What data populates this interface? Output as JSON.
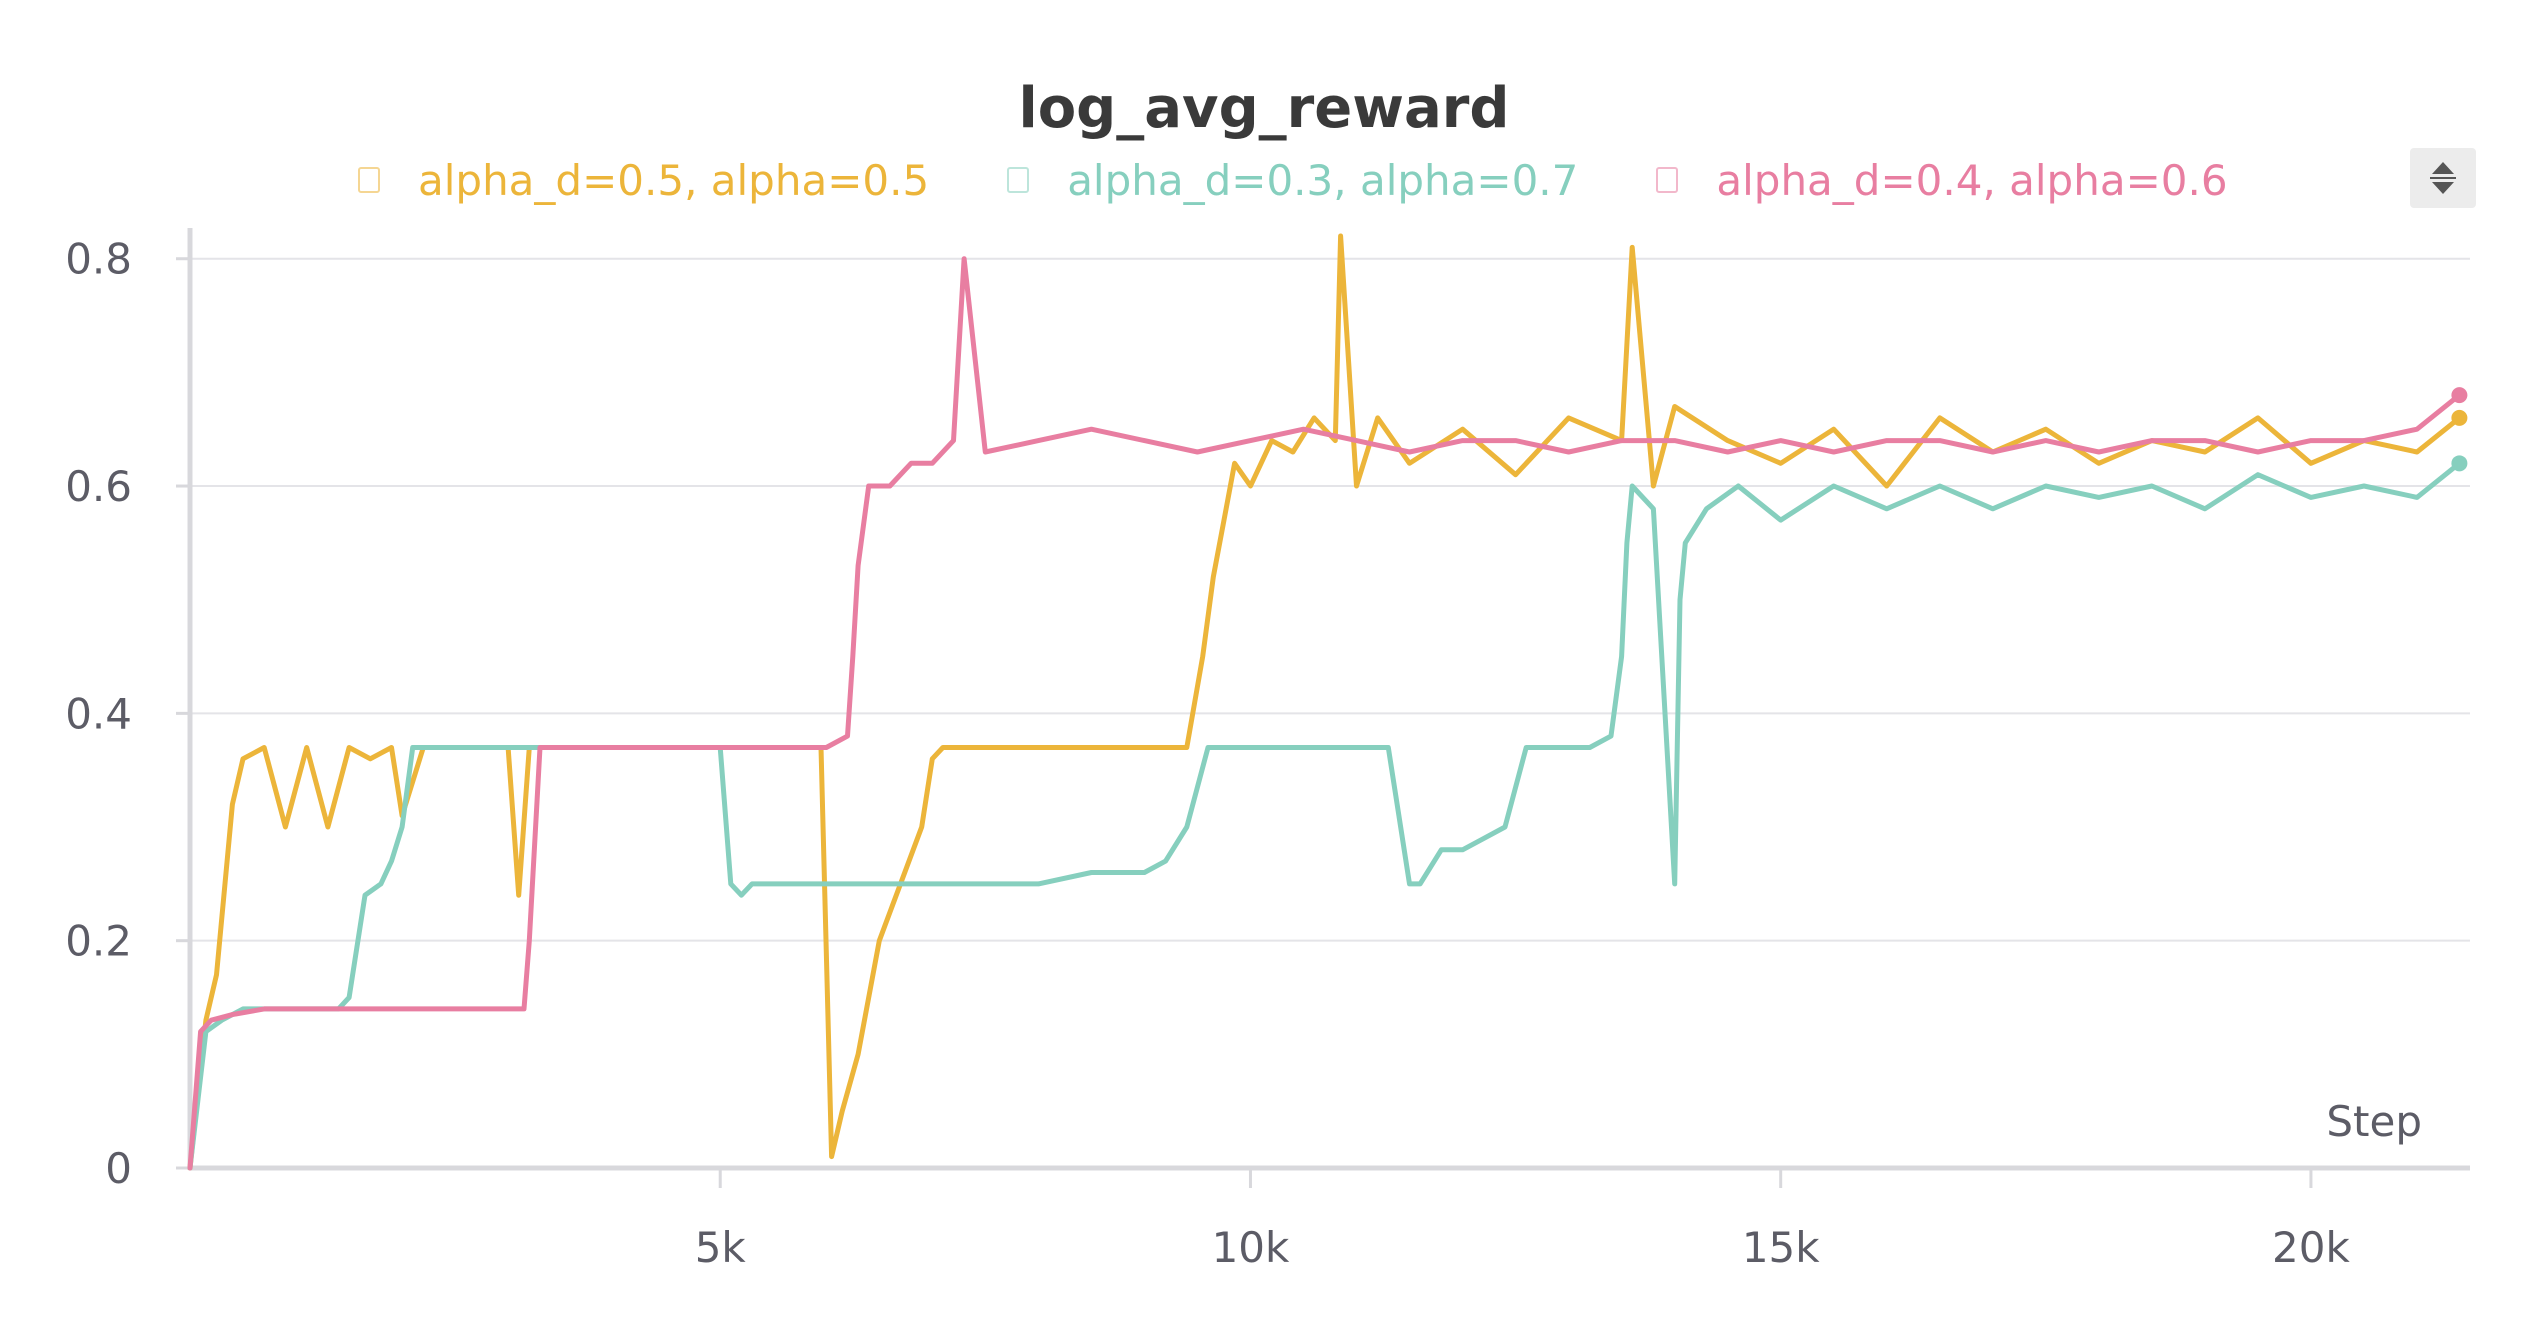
{
  "chart_data": {
    "type": "line",
    "title": "log_avg_reward",
    "xlabel": "Step",
    "ylabel": "",
    "xlim": [
      0,
      21500
    ],
    "ylim": [
      0,
      0.82
    ],
    "xticks": [
      5000,
      10000,
      15000,
      20000
    ],
    "xtick_labels": [
      "5k",
      "10k",
      "15k",
      "20k"
    ],
    "yticks": [
      0,
      0.2,
      0.4,
      0.6,
      0.8
    ],
    "ytick_labels": [
      "0",
      "0.2",
      "0.4",
      "0.6",
      "0.8"
    ],
    "grid": true,
    "legend_position": "top",
    "series": [
      {
        "name": "alpha_d=0.5, alpha=0.5",
        "color": "#ecb53a",
        "x": [
          0,
          150,
          250,
          400,
          500,
          700,
          900,
          1100,
          1300,
          1500,
          1700,
          1900,
          2000,
          2200,
          2500,
          2800,
          3000,
          3100,
          3200,
          3300,
          3500,
          3700,
          4000,
          4500,
          5000,
          5500,
          5800,
          5950,
          6050,
          6150,
          6300,
          6500,
          6700,
          6900,
          7000,
          7100,
          7500,
          8000,
          8500,
          9000,
          9400,
          9550,
          9650,
          9750,
          9850,
          10000,
          10200,
          10400,
          10600,
          10800,
          10850,
          11000,
          11200,
          11500,
          12000,
          12500,
          13000,
          13500,
          13600,
          13800,
          14000,
          14500,
          15000,
          15500,
          16000,
          16500,
          17000,
          17500,
          18000,
          18500,
          19000,
          19500,
          20000,
          20500,
          21000,
          21400
        ],
        "y": [
          0.0,
          0.13,
          0.17,
          0.32,
          0.36,
          0.37,
          0.3,
          0.37,
          0.3,
          0.37,
          0.36,
          0.37,
          0.31,
          0.37,
          0.37,
          0.37,
          0.37,
          0.24,
          0.37,
          0.37,
          0.37,
          0.37,
          0.37,
          0.37,
          0.37,
          0.37,
          0.37,
          0.37,
          0.01,
          0.05,
          0.1,
          0.2,
          0.25,
          0.3,
          0.36,
          0.37,
          0.37,
          0.37,
          0.37,
          0.37,
          0.37,
          0.45,
          0.52,
          0.57,
          0.62,
          0.6,
          0.64,
          0.63,
          0.66,
          0.64,
          0.82,
          0.6,
          0.66,
          0.62,
          0.65,
          0.61,
          0.66,
          0.64,
          0.81,
          0.6,
          0.67,
          0.64,
          0.62,
          0.65,
          0.6,
          0.66,
          0.63,
          0.65,
          0.62,
          0.64,
          0.63,
          0.66,
          0.62,
          0.64,
          0.63,
          0.66
        ]
      },
      {
        "name": "alpha_d=0.3, alpha=0.7",
        "color": "#86cfbe",
        "x": [
          0,
          150,
          300,
          500,
          800,
          1100,
          1400,
          1500,
          1650,
          1800,
          1900,
          2000,
          2100,
          2200,
          2400,
          2700,
          3000,
          3300,
          3600,
          4000,
          4300,
          4500,
          4800,
          5000,
          5100,
          5200,
          5300,
          5500,
          6000,
          6500,
          7000,
          7500,
          8000,
          8500,
          9000,
          9200,
          9400,
          9600,
          9800,
          10000,
          10500,
          11000,
          11300,
          11500,
          11600,
          11800,
          12000,
          12200,
          12400,
          12600,
          12900,
          13200,
          13400,
          13500,
          13550,
          13600,
          13800,
          14000,
          14050,
          14100,
          14300,
          14600,
          15000,
          15500,
          16000,
          16500,
          17000,
          17500,
          18000,
          18500,
          19000,
          19500,
          20000,
          20500,
          21000,
          21400
        ],
        "y": [
          0.0,
          0.12,
          0.13,
          0.14,
          0.14,
          0.14,
          0.14,
          0.15,
          0.24,
          0.25,
          0.27,
          0.3,
          0.37,
          0.37,
          0.37,
          0.37,
          0.37,
          0.37,
          0.37,
          0.37,
          0.37,
          0.37,
          0.37,
          0.37,
          0.25,
          0.24,
          0.25,
          0.25,
          0.25,
          0.25,
          0.25,
          0.25,
          0.25,
          0.26,
          0.26,
          0.27,
          0.3,
          0.37,
          0.37,
          0.37,
          0.37,
          0.37,
          0.37,
          0.25,
          0.25,
          0.28,
          0.28,
          0.29,
          0.3,
          0.37,
          0.37,
          0.37,
          0.38,
          0.45,
          0.55,
          0.6,
          0.58,
          0.25,
          0.5,
          0.55,
          0.58,
          0.6,
          0.57,
          0.6,
          0.58,
          0.6,
          0.58,
          0.6,
          0.59,
          0.6,
          0.58,
          0.61,
          0.59,
          0.6,
          0.59,
          0.62
        ]
      },
      {
        "name": "alpha_d=0.4, alpha=0.6",
        "color": "#e87ea1",
        "x": [
          0,
          100,
          200,
          400,
          700,
          1000,
          1300,
          1600,
          1900,
          2200,
          2500,
          2800,
          3100,
          3150,
          3200,
          3300,
          3500,
          4000,
          4500,
          5000,
          5500,
          6000,
          6200,
          6250,
          6300,
          6400,
          6600,
          6800,
          7000,
          7200,
          7300,
          7500,
          8000,
          8500,
          9000,
          9500,
          10000,
          10500,
          11000,
          11500,
          12000,
          12500,
          13000,
          13500,
          14000,
          14500,
          15000,
          15500,
          16000,
          16500,
          17000,
          17500,
          18000,
          18500,
          19000,
          19500,
          20000,
          20500,
          21000,
          21400
        ],
        "y": [
          0.0,
          0.12,
          0.13,
          0.135,
          0.14,
          0.14,
          0.14,
          0.14,
          0.14,
          0.14,
          0.14,
          0.14,
          0.14,
          0.14,
          0.2,
          0.37,
          0.37,
          0.37,
          0.37,
          0.37,
          0.37,
          0.37,
          0.38,
          0.45,
          0.53,
          0.6,
          0.6,
          0.62,
          0.62,
          0.64,
          0.8,
          0.63,
          0.64,
          0.65,
          0.64,
          0.63,
          0.64,
          0.65,
          0.64,
          0.63,
          0.64,
          0.64,
          0.63,
          0.64,
          0.64,
          0.63,
          0.64,
          0.63,
          0.64,
          0.64,
          0.63,
          0.64,
          0.63,
          0.64,
          0.64,
          0.63,
          0.64,
          0.64,
          0.65,
          0.68
        ]
      }
    ]
  }
}
